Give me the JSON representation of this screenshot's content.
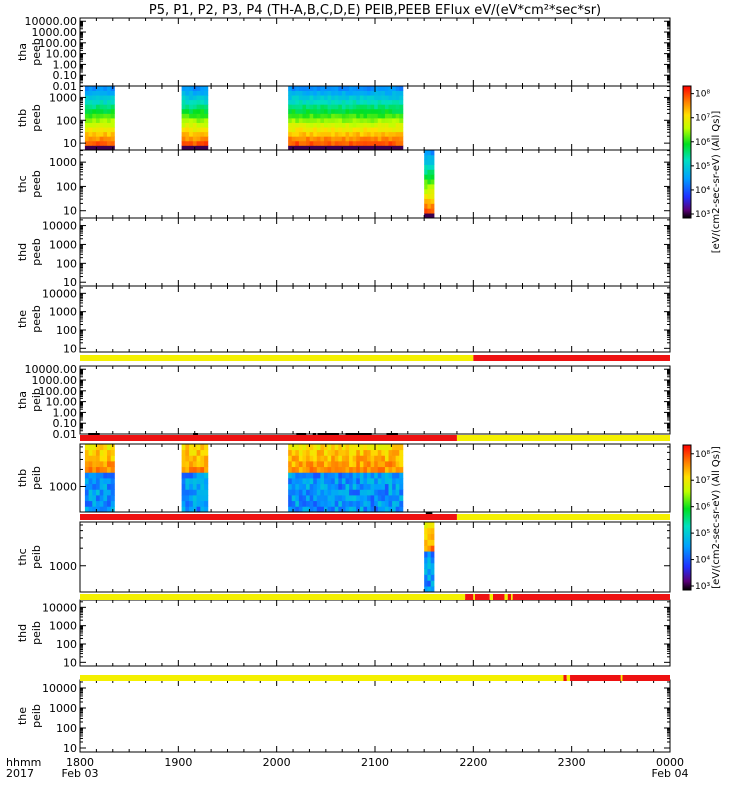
{
  "title": "P5, P1, P2, P3, P4 (TH-A,B,C,D,E) PEIB,PEEB EFlux eV/(eV*cm²*sec*sr)",
  "colors": {
    "flag_yellow": "#f4f000",
    "flag_red": "#ee1111",
    "flag_black": "#000000"
  },
  "chart_data": {
    "type": "heatmap",
    "title": "P5, P1, P2, P3, P4 (TH-A,B,C,D,E) PEIB,PEEB EFlux eV/(eV*cm²*sec*sr)",
    "x_axis": {
      "unit": "hhmm",
      "year": "2017",
      "range_hhmm": [
        "1800",
        "0000"
      ],
      "ticks": [
        {
          "label": "1800",
          "date": "Feb 03",
          "hour": 18
        },
        {
          "label": "1900",
          "date": "",
          "hour": 19
        },
        {
          "label": "2000",
          "date": "",
          "hour": 20
        },
        {
          "label": "2100",
          "date": "",
          "hour": 21
        },
        {
          "label": "2200",
          "date": "",
          "hour": 22
        },
        {
          "label": "2300",
          "date": "",
          "hour": 23
        },
        {
          "label": "0000",
          "date": "Feb 04",
          "hour": 24
        }
      ],
      "grid": false
    },
    "colorbars": [
      {
        "panels": "thb/thc peeb",
        "label": "[eV/(cm2-sec-sr-eV) (All Qs)]",
        "log_range": [
          3,
          8
        ],
        "tick_labels": [
          "10³",
          "10⁴",
          "10⁵",
          "10⁶",
          "10⁷",
          "10⁸"
        ]
      },
      {
        "panels": "thb/thc peib",
        "label": "[eV/(cm2-sec-sr-eV) (All Qs)]",
        "log_range": [
          3,
          8
        ],
        "tick_labels": [
          "10³",
          "10⁴",
          "10⁵",
          "10⁶",
          "10⁷",
          "10⁸"
        ]
      }
    ],
    "panels": [
      {
        "id": "tha_peeb",
        "probe": "tha",
        "inst": "peeb",
        "ylog": [
          -2,
          4.3
        ],
        "yticks": [
          "10000.00",
          "1000.00",
          "100.00",
          "10.00",
          "1.00",
          "0.10",
          "0.01"
        ],
        "ytick_values": [
          4,
          3,
          2,
          1,
          0,
          -1,
          -2
        ],
        "data_intervals": []
      },
      {
        "id": "thb_peeb",
        "probe": "thb",
        "inst": "peeb",
        "ylog": [
          0.7,
          3.5
        ],
        "yticks": [
          "1000",
          "100",
          "10"
        ],
        "ytick_values": [
          3,
          2,
          1
        ],
        "colorbar": 0,
        "profile": "electron",
        "data_intervals": [
          [
            "18:03",
            "18:21"
          ],
          [
            "19:02",
            "19:18"
          ],
          [
            "20:07",
            "21:17"
          ]
        ]
      },
      {
        "id": "thc_peeb",
        "probe": "thc",
        "inst": "peeb",
        "ylog": [
          0.7,
          3.5
        ],
        "yticks": [
          "1000",
          "100",
          "10"
        ],
        "ytick_values": [
          3,
          2,
          1
        ],
        "colorbar": 0,
        "profile": "electron",
        "data_intervals": [
          [
            "21:30",
            "21:36"
          ]
        ]
      },
      {
        "id": "thd_peeb",
        "probe": "thd",
        "inst": "peeb",
        "ylog": [
          0.8,
          4.4
        ],
        "yticks": [
          "10000",
          "1000",
          "100",
          "10"
        ],
        "ytick_values": [
          4,
          3,
          2,
          1
        ],
        "data_intervals": []
      },
      {
        "id": "the_peeb",
        "probe": "the",
        "inst": "peeb",
        "ylog": [
          0.8,
          4.4
        ],
        "yticks": [
          "10000",
          "1000",
          "100",
          "10"
        ],
        "ytick_values": [
          4,
          3,
          2,
          1
        ],
        "data_intervals": []
      },
      {
        "id": "tha_peib",
        "probe": "tha",
        "inst": "peib",
        "ylog": [
          -2,
          4.3
        ],
        "yticks": [
          "10000.00",
          "1000.00",
          "100.00",
          "10.00",
          "1.00",
          "0.10",
          "0.01"
        ],
        "ytick_values": [
          4,
          3,
          2,
          1,
          0,
          -1,
          -2
        ],
        "data_intervals": []
      },
      {
        "id": "thb_peib",
        "probe": "thb",
        "inst": "peib",
        "ylog": [
          2.55,
          3.75
        ],
        "yticks": [
          "1000"
        ],
        "ytick_values": [
          3
        ],
        "colorbar": 1,
        "profile": "ion",
        "data_intervals": [
          [
            "18:03",
            "18:21"
          ],
          [
            "19:02",
            "19:18"
          ],
          [
            "20:07",
            "21:17"
          ]
        ]
      },
      {
        "id": "thc_peib",
        "probe": "thc",
        "inst": "peib",
        "ylog": [
          2.55,
          3.75
        ],
        "yticks": [
          "1000"
        ],
        "ytick_values": [
          3
        ],
        "colorbar": 1,
        "profile": "ion",
        "data_intervals": [
          [
            "21:30",
            "21:36"
          ]
        ]
      },
      {
        "id": "thd_peib",
        "probe": "thd",
        "inst": "peib",
        "ylog": [
          0.8,
          4.4
        ],
        "yticks": [
          "10000",
          "1000",
          "100",
          "10"
        ],
        "ytick_values": [
          4,
          3,
          2,
          1
        ],
        "data_intervals": []
      },
      {
        "id": "the_peib",
        "probe": "the",
        "inst": "peib",
        "ylog": [
          0.8,
          4.4
        ],
        "yticks": [
          "10000",
          "1000",
          "100",
          "10"
        ],
        "ytick_values": [
          4,
          3,
          2,
          1
        ],
        "data_intervals": []
      }
    ],
    "flag_bars": [
      {
        "after_panel": "the_peeb",
        "segments": [
          {
            "from": "18:00",
            "to": "22:00",
            "color": "yellow"
          },
          {
            "from": "22:00",
            "to": "24:00",
            "color": "red"
          }
        ]
      },
      {
        "after_panel": "tha_peib",
        "segments": [
          {
            "from": "18:00",
            "to": "21:50",
            "color": "red"
          },
          {
            "from": "21:50",
            "to": "24:00",
            "color": "yellow"
          }
        ],
        "marks": [
          [
            "18:05",
            "18:12"
          ],
          [
            "19:09",
            "19:12"
          ],
          [
            "20:12",
            "20:18"
          ],
          [
            "20:22",
            "20:24"
          ],
          [
            "20:25",
            "20:38"
          ],
          [
            "20:42",
            "20:58"
          ],
          [
            "21:07",
            "21:14"
          ]
        ]
      },
      {
        "after_panel": "thb_peib",
        "segments": [
          {
            "from": "18:00",
            "to": "21:50",
            "color": "red"
          },
          {
            "from": "21:50",
            "to": "24:00",
            "color": "yellow"
          }
        ],
        "marks": [
          [
            "21:31",
            "21:35"
          ]
        ]
      },
      {
        "after_panel": "thc_peib",
        "segments": [
          {
            "from": "18:00",
            "to": "21:55",
            "color": "yellow"
          },
          {
            "from": "21:55",
            "to": "22:00",
            "color": "red"
          },
          {
            "from": "22:00",
            "to": "22:01",
            "color": "yellow"
          },
          {
            "from": "22:01",
            "to": "22:10",
            "color": "red"
          },
          {
            "from": "22:10",
            "to": "22:12",
            "color": "yellow"
          },
          {
            "from": "22:12",
            "to": "22:19",
            "color": "red"
          },
          {
            "from": "22:19",
            "to": "22:21",
            "color": "yellow"
          },
          {
            "from": "22:21",
            "to": "22:23",
            "color": "red"
          },
          {
            "from": "22:23",
            "to": "22:24",
            "color": "yellow"
          },
          {
            "from": "22:24",
            "to": "24:00",
            "color": "red"
          }
        ]
      },
      {
        "after_panel": "thd_peib",
        "segments": [
          {
            "from": "18:00",
            "to": "22:55",
            "color": "yellow"
          },
          {
            "from": "22:55",
            "to": "22:57",
            "color": "red"
          },
          {
            "from": "22:57",
            "to": "22:59",
            "color": "yellow"
          },
          {
            "from": "22:59",
            "to": "23:30",
            "color": "red"
          },
          {
            "from": "23:30",
            "to": "23:31",
            "color": "yellow"
          },
          {
            "from": "23:31",
            "to": "24:00",
            "color": "red"
          }
        ]
      }
    ]
  }
}
